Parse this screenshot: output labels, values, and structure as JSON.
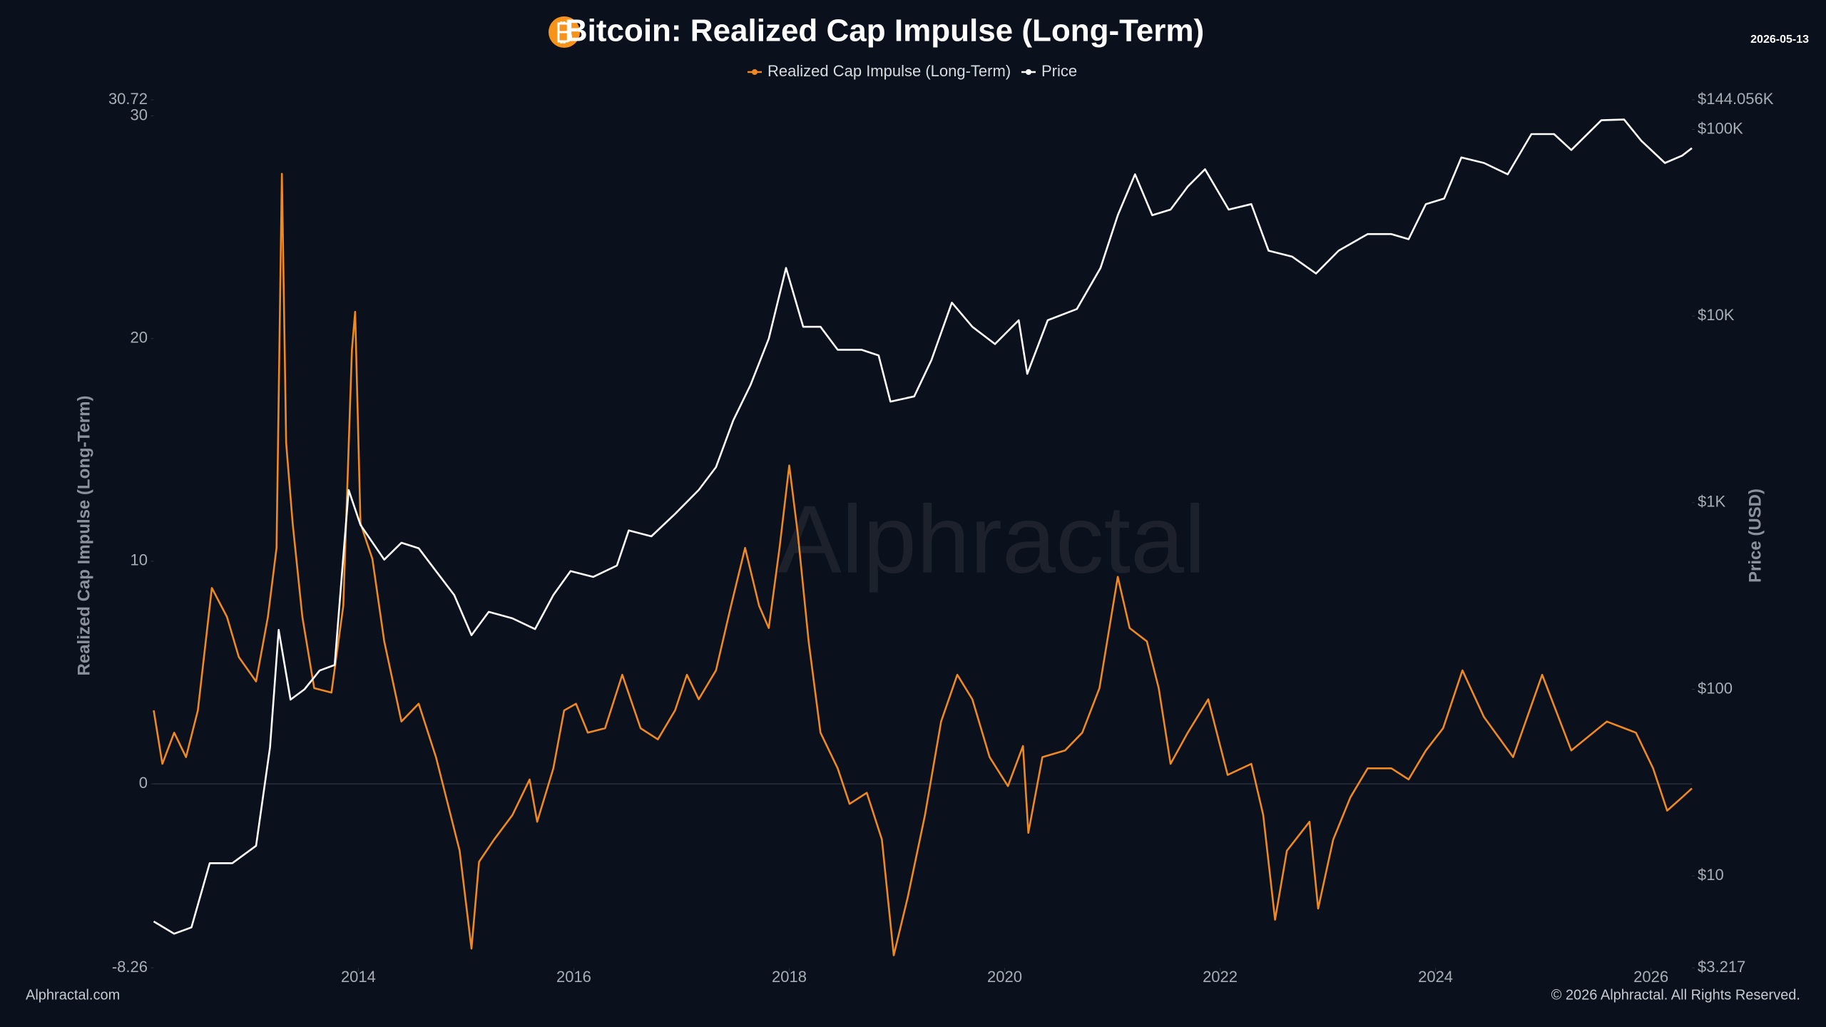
{
  "chart_data": {
    "type": "line",
    "title": "Bitcoin: Realized Cap Impulse (Long-Term)",
    "date": "2026-05-13",
    "watermark": "Alphractal",
    "footer_left": "Alphractal.com",
    "footer_right": "© 2026 Alphractal. All Rights Reserved.",
    "ylabel": "Realized Cap Impulse (Long-Term)",
    "y2label": "Price (USD)",
    "xlim": [
      2012.1,
      2026.38
    ],
    "xticks": [
      2014,
      2016,
      2018,
      2020,
      2022,
      2024,
      2026
    ],
    "ylim": [
      -8.26,
      30.72
    ],
    "yticks": [
      -8.26,
      0,
      10,
      20,
      30,
      30.72
    ],
    "y2lim": [
      3.217,
      144056
    ],
    "y2log": true,
    "y2ticks": [
      {
        "value": 3.217,
        "label": "$3.217"
      },
      {
        "value": 10,
        "label": "$10"
      },
      {
        "value": 100,
        "label": "$100"
      },
      {
        "value": 1000,
        "label": "$1K"
      },
      {
        "value": 10000,
        "label": "$10K"
      },
      {
        "value": 100000,
        "label": "$100K"
      },
      {
        "value": 144056,
        "label": "$144.056K"
      }
    ],
    "series": [
      {
        "name": "Realized Cap Impulse (Long-Term)",
        "color": "#f0891f",
        "axis": "y",
        "x": [
          2012.1,
          2012.18,
          2012.29,
          2012.4,
          2012.51,
          2012.64,
          2012.78,
          2012.89,
          2013.05,
          2013.16,
          2013.24,
          2013.29,
          2013.33,
          2013.39,
          2013.48,
          2013.59,
          2013.75,
          2013.86,
          2013.94,
          2013.97,
          2014.02,
          2014.13,
          2014.24,
          2014.4,
          2014.56,
          2014.72,
          2014.83,
          2014.94,
          2015.05,
          2015.12,
          2015.26,
          2015.43,
          2015.59,
          2015.66,
          2015.81,
          2015.91,
          2016.02,
          2016.13,
          2016.29,
          2016.45,
          2016.62,
          2016.78,
          2016.94,
          2017.05,
          2017.16,
          2017.32,
          2017.46,
          2017.59,
          2017.72,
          2017.81,
          2017.91,
          2018.0,
          2018.08,
          2018.18,
          2018.29,
          2018.45,
          2018.56,
          2018.72,
          2018.86,
          2018.97,
          2019.1,
          2019.26,
          2019.41,
          2019.56,
          2019.7,
          2019.86,
          2020.03,
          2020.17,
          2020.22,
          2020.35,
          2020.56,
          2020.72,
          2020.88,
          2021.05,
          2021.16,
          2021.32,
          2021.43,
          2021.54,
          2021.7,
          2021.89,
          2022.07,
          2022.29,
          2022.4,
          2022.51,
          2022.62,
          2022.83,
          2022.91,
          2023.05,
          2023.21,
          2023.37,
          2023.59,
          2023.75,
          2023.91,
          2024.07,
          2024.25,
          2024.45,
          2024.72,
          2024.99,
          2025.26,
          2025.59,
          2025.86,
          2026.02,
          2026.15,
          2026.29,
          2026.38
        ],
        "values": [
          3.3,
          0.9,
          2.3,
          1.2,
          3.3,
          8.8,
          7.5,
          5.7,
          4.6,
          7.5,
          10.6,
          27.4,
          15.3,
          11.7,
          7.5,
          4.3,
          4.1,
          8.0,
          19.5,
          21.2,
          11.7,
          10.1,
          6.4,
          2.8,
          3.6,
          1.2,
          -0.9,
          -3.0,
          -7.4,
          -3.5,
          -2.5,
          -1.4,
          0.2,
          -1.7,
          0.7,
          3.3,
          3.6,
          2.3,
          2.5,
          4.9,
          2.5,
          2.0,
          3.3,
          4.9,
          3.8,
          5.1,
          8.0,
          10.6,
          8.0,
          7.0,
          10.6,
          14.3,
          11.2,
          6.4,
          2.3,
          0.7,
          -0.9,
          -0.4,
          -2.5,
          -7.7,
          -5.1,
          -1.4,
          2.8,
          4.9,
          3.8,
          1.2,
          -0.1,
          1.7,
          -2.2,
          1.2,
          1.5,
          2.3,
          4.3,
          9.3,
          7.0,
          6.4,
          4.3,
          0.9,
          2.3,
          3.8,
          0.4,
          0.9,
          -1.4,
          -6.1,
          -3.0,
          -1.7,
          -5.6,
          -2.5,
          -0.6,
          0.7,
          0.7,
          0.2,
          1.5,
          2.5,
          5.1,
          3.0,
          1.2,
          4.9,
          1.5,
          2.8,
          2.3,
          0.7,
          -1.2,
          -0.6,
          -0.2
        ]
      },
      {
        "name": "Price",
        "color": "#ffffff",
        "axis": "y2",
        "x": [
          2012.1,
          2012.29,
          2012.45,
          2012.62,
          2012.83,
          2013.05,
          2013.18,
          2013.26,
          2013.37,
          2013.5,
          2013.64,
          2013.78,
          2013.91,
          2014.02,
          2014.24,
          2014.4,
          2014.56,
          2014.72,
          2014.89,
          2015.05,
          2015.21,
          2015.43,
          2015.64,
          2015.81,
          2015.97,
          2016.18,
          2016.4,
          2016.51,
          2016.72,
          2016.94,
          2017.16,
          2017.32,
          2017.48,
          2017.64,
          2017.81,
          2017.97,
          2018.13,
          2018.29,
          2018.45,
          2018.67,
          2018.83,
          2018.94,
          2019.16,
          2019.32,
          2019.51,
          2019.7,
          2019.91,
          2020.13,
          2020.21,
          2020.4,
          2020.67,
          2020.89,
          2021.05,
          2021.21,
          2021.37,
          2021.54,
          2021.7,
          2021.86,
          2022.08,
          2022.29,
          2022.45,
          2022.67,
          2022.89,
          2023.1,
          2023.37,
          2023.59,
          2023.75,
          2023.91,
          2024.08,
          2024.24,
          2024.45,
          2024.67,
          2024.89,
          2025.1,
          2025.26,
          2025.54,
          2025.75,
          2025.91,
          2026.13,
          2026.29,
          2026.38
        ],
        "values": [
          5.7,
          4.9,
          5.3,
          11.7,
          11.7,
          14.5,
          49,
          208,
          88,
          100,
          126,
          135,
          1170,
          760,
          495,
          610,
          570,
          430,
          320,
          195,
          260,
          240,
          210,
          320,
          430,
          400,
          460,
          710,
          660,
          870,
          1170,
          1550,
          2760,
          4260,
          7570,
          18100,
          8760,
          8760,
          6600,
          6600,
          6150,
          3480,
          3710,
          5800,
          11800,
          8760,
          7080,
          9500,
          4900,
          9500,
          10900,
          18100,
          34700,
          57500,
          34700,
          37200,
          49400,
          61200,
          37200,
          39800,
          22400,
          20800,
          16900,
          22400,
          27500,
          27500,
          25800,
          39800,
          42600,
          70800,
          66100,
          57500,
          94400,
          94400,
          77600,
          112000,
          113000,
          87000,
          66100,
          72400,
          79400
        ]
      }
    ]
  }
}
